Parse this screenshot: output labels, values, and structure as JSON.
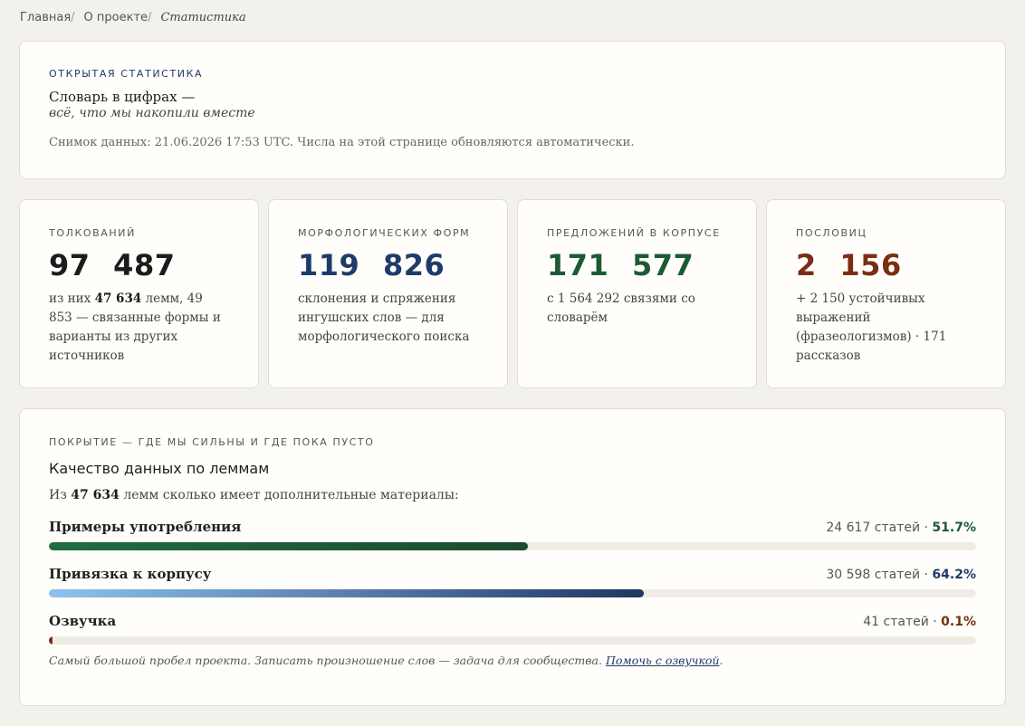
{
  "breadcrumbs": {
    "home": "Главная",
    "about": "О проекте",
    "current": "Статистика",
    "separator": "/"
  },
  "hero": {
    "eyebrow": "Открытая статистика",
    "title": "Словарь в цифрах —",
    "subtitle": "всё, что мы накопили вместе",
    "note": "Снимок данных: 21.06.2026 17:53 UTC. Числа на этой странице обновляются автоматически."
  },
  "stats": [
    {
      "label": "Толкований",
      "value": "97 487",
      "color": "#1c1c1c",
      "desc_pre": "из них ",
      "desc_bold": "47 634",
      "desc_post": " лемм, 49 853 — связанные формы и варианты из других источников"
    },
    {
      "label": "Морфологических форм",
      "value": "119 826",
      "color": "#1f3b6b",
      "desc_pre": "склонения и спряжения ингушских слов — для морфологического поиска",
      "desc_bold": "",
      "desc_post": ""
    },
    {
      "label": "Предложений в корпусе",
      "value": "171 577",
      "color": "#1c5a34",
      "desc_pre": "с 1 564 292 связями со словарём",
      "desc_bold": "",
      "desc_post": ""
    },
    {
      "label": "Пословиц",
      "value": "2 156",
      "color": "#7a2e12",
      "desc_pre": "+ 2 150 устойчивых выражений (фразеологизмов) · 171 рассказов",
      "desc_bold": "",
      "desc_post": ""
    }
  ],
  "coverage": {
    "eyebrow": "Покрытие — где мы сильны и где пока пусто",
    "title": "Качество данных по леммам",
    "intro_pre": "Из ",
    "intro_bold": "47 634",
    "intro_post": " лемм сколько имеет дополнительные материалы:",
    "rows": [
      {
        "label": "Примеры употребления",
        "count": "24 617 статей · ",
        "percent": "51.7%",
        "fraction": 0.517,
        "pct_color": "#1c5a34",
        "fill": "linear-gradient(90deg,#1f6e3f,#1c4a30)"
      },
      {
        "label": "Привязка к корпусу",
        "count": "30 598 статей · ",
        "percent": "64.2%",
        "fraction": 0.642,
        "pct_color": "#1f3b6b",
        "fill": "linear-gradient(90deg,#8fc1ee,#5f86b6 45%,#1e3760)"
      },
      {
        "label": "Озвучка",
        "count": "41 статей · ",
        "percent": "0.1%",
        "fraction": 0.001,
        "pct_color": "#7a2e12",
        "fill": "#7a2e12"
      }
    ],
    "footnote": "Самый большой пробел проекта. Записать произношение слов — задача для сообщества. ",
    "footnote_link": "Помочь с озвучкой",
    "footnote_end": "."
  }
}
